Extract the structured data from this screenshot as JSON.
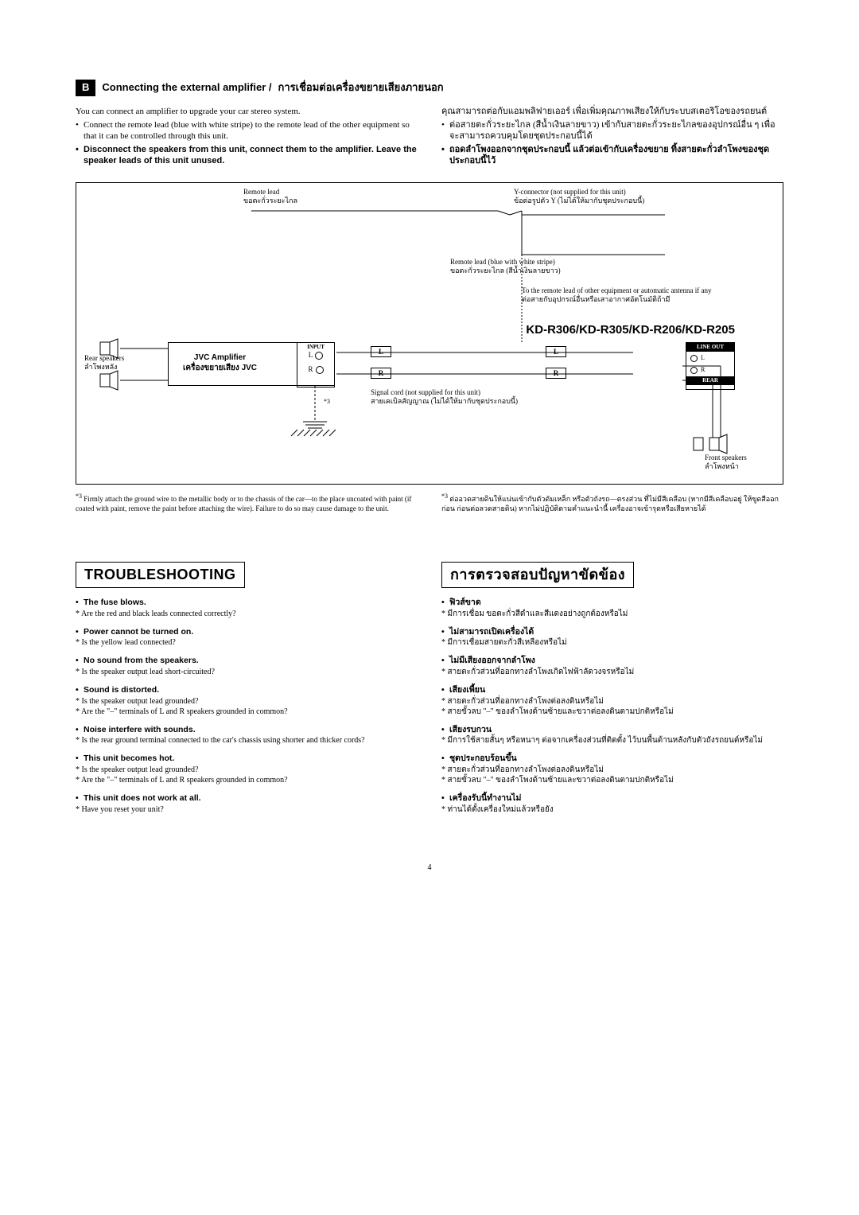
{
  "section_b": {
    "badge": "B",
    "title_en": "Connecting the external amplifier /",
    "title_th": "การเชื่อมต่อเครื่องขยายเสียงภายนอก",
    "left": {
      "intro": "You can connect an amplifier to upgrade your car stereo system.",
      "b1": "Connect the remote lead (blue with white stripe) to the remote lead of the other equipment so that it can be controlled through this unit.",
      "b2_bold": "Disconnect the speakers from this unit, connect them to the amplifier. Leave the speaker leads of this unit unused."
    },
    "right": {
      "intro": "คุณสามารถต่อกับแอมพลิฟายเออร์ เพื่อเพิ่มคุณภาพเสียงให้กับระบบสเตอริโอของรถยนต์",
      "b1": "ต่อสายตะกั่วระยะไกล (สีน้ำเงินลายขาว) เข้ากับสายตะกั่วระยะไกลของอุปกรณ์อื่น ๆ เพื่อจะสามารถควบคุมโดยชุดประกอบนี้ได้",
      "b2_bold": "ถอดลำโพงออกจากชุดประกอบนี้ แล้วต่อเข้ากับเครื่องขยาย ทิ้งสายตะกั่วลำโพงของชุดประกอบนี้ไว้"
    }
  },
  "diagram": {
    "remote_lead_en": "Remote lead",
    "remote_lead_th": "ขอตะกั่วระยะไกล",
    "y_conn_en": "Y-connector (not supplied for this unit)",
    "y_conn_th": "ข้อต่อรูปตัว Y (ไม่ได้ให้มากับชุดประกอบนี้)",
    "remote_blue_en": "Remote lead (blue with white stripe)",
    "remote_blue_th": "ขอตะกั่วระยะไกล (สีน้ำเงินลายขาว)",
    "to_remote_en": "To the remote lead of other equipment or automatic antenna if any",
    "to_remote_th": "ต่อสายกับอุปกรณ์อื่นหรือเสาอากาศอัตโนมัติถ้ามี",
    "model": "KD-R306/KD-R305/KD-R206/KD-R205",
    "rear_sp_en": "Rear speakers",
    "rear_sp_th": "ลำโพงหลัง",
    "amp_en": "JVC Amplifier",
    "amp_th": "เครื่องขยายเสียง JVC",
    "input": "INPUT",
    "L": "L",
    "R": "R",
    "lineout": "LINE OUT",
    "rear": "REAR",
    "signal_en": "Signal cord (not supplied for this unit)",
    "signal_th": "สายเคเบิลสัญญาณ (ไม่ได้ให้มากับชุดประกอบนี้)",
    "front_sp_en": "Front speakers",
    "front_sp_th": "ลำโพงหน้า",
    "star3": "*3",
    "fn_left": "Firmly attach the ground wire to the metallic body or to the chassis of the car—to the place uncoated with paint (if coated with paint, remove the paint before attaching the wire). Failure to do so may cause damage to the unit.",
    "fn_right": "ต่ออวดสายดินให้แน่นเข้ากับตัวดัมเหล็ก หรือตัวถังรถ—ตรงส่วน ที่ไม่มีสีเคลือบ (หากมีสีเคลือบอยู่ ให้ขูดสีออกก่อน ก่อนต่อลวดสายดิน) หากไม่ปฏิบัติตามคำแนะนำนี้ เครื่องอาจเข้ารุดหรือเสียหายได้"
  },
  "ts_en": {
    "heading": "TROUBLESHOOTING",
    "items": [
      {
        "q": "The fuse blows.",
        "a": [
          "* Are the red and black leads connected correctly?"
        ]
      },
      {
        "q": "Power cannot be turned on.",
        "a": [
          "* Is the yellow lead connected?"
        ]
      },
      {
        "q": "No sound from the speakers.",
        "a": [
          "* Is the speaker output lead short-circuited?"
        ]
      },
      {
        "q": "Sound is distorted.",
        "a": [
          "* Is the speaker output lead grounded?",
          "* Are the \"–\" terminals of L and R speakers grounded in common?"
        ]
      },
      {
        "q": "Noise interfere with sounds.",
        "a": [
          "* Is the rear ground terminal connected to the car's chassis using shorter and thicker cords?"
        ]
      },
      {
        "q": "This unit becomes hot.",
        "a": [
          "* Is the speaker output lead grounded?",
          "* Are the \"–\" terminals of L and R speakers grounded in common?"
        ]
      },
      {
        "q": "This unit does not work at all.",
        "a": [
          "* Have you reset your unit?"
        ]
      }
    ]
  },
  "ts_th": {
    "heading": "การตรวจสอบปัญหาขัดข้อง",
    "items": [
      {
        "q": "ฟิวส์ขาด",
        "a": [
          "* มีการเชื่อม ขอตะกั่วสีดำและสีแดงอย่างถูกต้องหรือไม่"
        ]
      },
      {
        "q": "ไม่สามารถเปิดเครื่องได้",
        "a": [
          "* มีการเชื่อมสายตะกั่วสีเหลืองหรือไม่"
        ]
      },
      {
        "q": "ไม่มีเสียงออกจากลำโพง",
        "a": [
          "* สายตะกั่วส่วนที่ออกทางลำโพงเกิดไฟฟ้าลัดวงจรหรือไม่"
        ]
      },
      {
        "q": "เสียงเพี้ยน",
        "a": [
          "* สายตะกั่วส่วนที่ออกทางลำโพงต่อลงดินหรือไม่",
          "* สายขั้วลบ \"–\" ของลำโพงด้านซ้ายและขวาต่อลงดินตามปกติหรือไม่"
        ]
      },
      {
        "q": "เสียงรบกวน",
        "a": [
          "* มีการใช้สายสั้นๆ หรือหนาๆ ต่อจากเครื่องส่วนที่ติดตั้ง ไว้บนพื้นด้านหลังกับตัวถังรถยนต์หรือไม่"
        ]
      },
      {
        "q": "ชุดประกอบร้อนขึ้น",
        "a": [
          "* สายตะกั่วส่วนที่ออกทางลำโพงต่อลงดินหรือไม่",
          "* สายขั้วลบ \"–\" ของลำโพงด้านซ้ายและขวาต่อลงดินตามปกติหรือไม่"
        ]
      },
      {
        "q": "เครื่องรับนี้ทำงานไม่",
        "a": [
          "* ท่านได้ตั้งเครื่องใหม่แล้วหรือยัง"
        ]
      }
    ]
  },
  "page": "4"
}
